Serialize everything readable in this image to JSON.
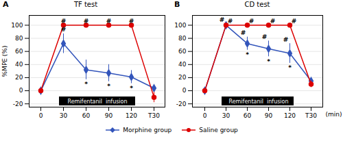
{
  "chart_data": [
    {
      "type": "line",
      "title": "TF test",
      "panel_label": "A",
      "categories": [
        "0",
        "30",
        "60",
        "90",
        "120",
        "T30"
      ],
      "series": [
        {
          "name": "Morphine group",
          "color": "#3355BB",
          "marker": "diamond",
          "values": [
            0,
            72,
            32,
            27,
            21,
            4
          ],
          "errors": [
            0,
            15,
            15,
            13,
            10,
            5
          ]
        },
        {
          "name": "Saline group",
          "color": "#DD0000",
          "marker": "circle",
          "values": [
            0,
            100,
            100,
            100,
            100,
            -10
          ],
          "errors": [
            0,
            0,
            0,
            0,
            0,
            8
          ]
        }
      ],
      "ylabel": "%MPE (%)",
      "ylim": [
        -25,
        115
      ],
      "yticks": [
        -20,
        0,
        20,
        40,
        60,
        80,
        100
      ],
      "grid": true,
      "legend": "bottom",
      "span_annotation": {
        "text": "Remifentanil  infusion",
        "from": "30",
        "to": "120"
      },
      "annotations": [
        {
          "text": "#",
          "series": "Saline group",
          "category": "30",
          "position": "above"
        },
        {
          "text": "#",
          "series": "Saline group",
          "category": "60",
          "position": "above"
        },
        {
          "text": "#",
          "series": "Saline group",
          "category": "90",
          "position": "above"
        },
        {
          "text": "#",
          "series": "Saline group",
          "category": "120",
          "position": "above"
        },
        {
          "text": "#",
          "series": "Morphine group",
          "category": "30",
          "position": "above"
        },
        {
          "text": "*",
          "series": "Morphine group",
          "category": "60",
          "position": "below"
        },
        {
          "text": "*",
          "series": "Morphine group",
          "category": "90",
          "position": "below"
        },
        {
          "text": "*",
          "series": "Morphine group",
          "category": "120",
          "position": "below"
        }
      ]
    },
    {
      "type": "line",
      "title": "CD test",
      "panel_label": "B",
      "categories": [
        "0",
        "30",
        "60",
        "90",
        "120",
        "T30"
      ],
      "series": [
        {
          "name": "Morphine group",
          "color": "#3355BB",
          "marker": "diamond",
          "values": [
            0,
            100,
            72,
            64,
            57,
            15
          ],
          "errors": [
            0,
            2,
            10,
            12,
            15,
            5
          ]
        },
        {
          "name": "Saline group",
          "color": "#DD0000",
          "marker": "circle",
          "values": [
            0,
            100,
            100,
            100,
            100,
            10
          ],
          "errors": [
            0,
            0,
            0,
            0,
            0,
            5
          ]
        }
      ],
      "xlabel": "(min)",
      "ylim": [
        -25,
        115
      ],
      "yticks": [
        -20,
        0,
        20,
        40,
        60,
        80,
        100
      ],
      "grid": true,
      "legend": "bottom",
      "span_annotation": {
        "text": "Remifentanil  infusion",
        "from": "30",
        "to": "120"
      },
      "annotations": [
        {
          "text": "#",
          "series": "Saline group",
          "category": "30",
          "position": "above_right"
        },
        {
          "text": "#",
          "series": "Saline group",
          "category": "60",
          "position": "above_right"
        },
        {
          "text": "#",
          "series": "Saline group",
          "category": "90",
          "position": "above_right"
        },
        {
          "text": "#",
          "series": "Saline group",
          "category": "120",
          "position": "above_right"
        },
        {
          "text": "#",
          "series": "Morphine group",
          "category": "30",
          "position": "above_left"
        },
        {
          "text": "#",
          "series": "Morphine group",
          "category": "60",
          "position": "above_left"
        },
        {
          "text": "*",
          "series": "Morphine group",
          "category": "60",
          "position": "below"
        },
        {
          "text": "#",
          "series": "Morphine group",
          "category": "90",
          "position": "above_left"
        },
        {
          "text": "*",
          "series": "Morphine group",
          "category": "90",
          "position": "below"
        },
        {
          "text": "#",
          "series": "Morphine group",
          "category": "120",
          "position": "above_left"
        },
        {
          "text": "*",
          "series": "Morphine group",
          "category": "120",
          "position": "below"
        }
      ]
    }
  ]
}
